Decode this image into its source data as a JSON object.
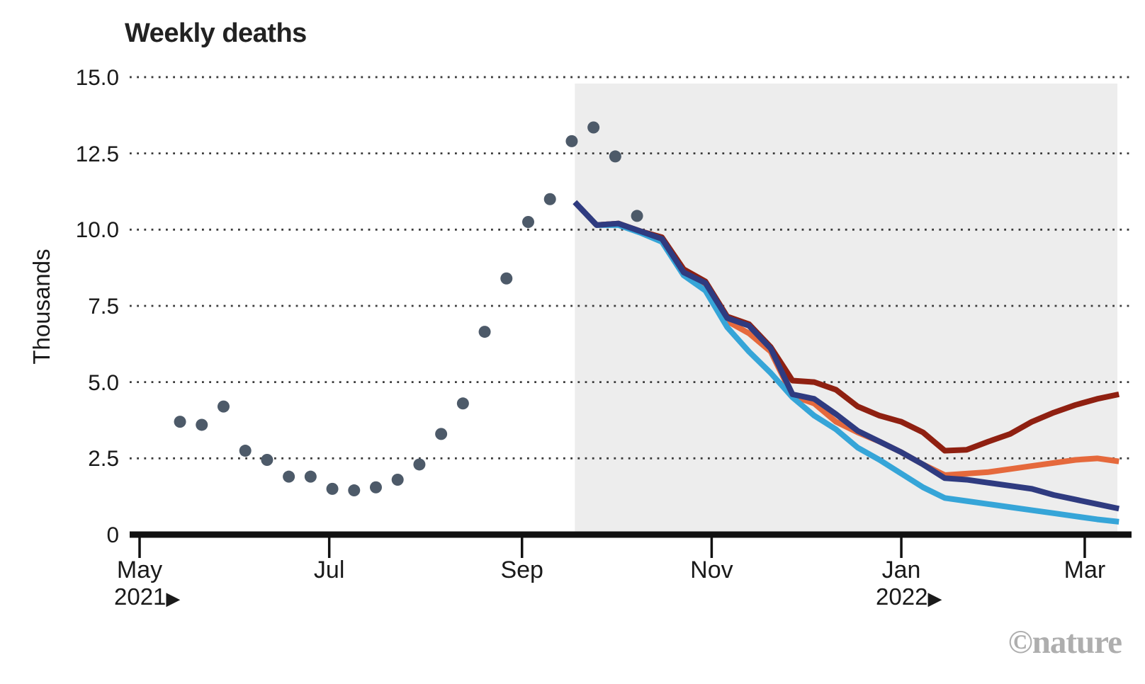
{
  "title": "Weekly deaths",
  "watermark": "©nature",
  "y_axis": {
    "label": "Thousands",
    "ticks": [
      {
        "value": 15,
        "label": "15.0"
      },
      {
        "value": 12.5,
        "label": "12.5"
      },
      {
        "value": 10,
        "label": "10.0"
      },
      {
        "value": 7.5,
        "label": "7.5"
      },
      {
        "value": 5,
        "label": "5.0"
      },
      {
        "value": 2.5,
        "label": "2.5"
      },
      {
        "value": 0,
        "label": "0"
      }
    ]
  },
  "x_axis": {
    "ticks": [
      {
        "label": "May",
        "day": 0
      },
      {
        "label": "Jul",
        "day": 61
      },
      {
        "label": "Sep",
        "day": 123
      },
      {
        "label": "Nov",
        "day": 184
      },
      {
        "label": "Jan",
        "day": 245
      },
      {
        "label": "Mar",
        "day": 304
      }
    ],
    "year_markers": [
      {
        "label": "2021",
        "arrow": "▶",
        "day": 0
      },
      {
        "label": "2022",
        "arrow": "▶",
        "day": 245
      }
    ]
  },
  "chart_data": {
    "type": "line",
    "title": "Weekly deaths",
    "ylabel": "Thousands",
    "x_unit": "days since 2021-05-01",
    "x_domain": [
      -3.2,
      319
    ],
    "ylim": [
      0,
      15
    ],
    "grid": "horizontal dotted",
    "legend": "none",
    "shaded_projection_region": {
      "start_day": 140,
      "end_day": 314.5,
      "color": "#ededed"
    },
    "observed": {
      "name": "observed-weekly-deaths",
      "type": "scatter",
      "color": "#4d5a69",
      "start_day": 13,
      "interval_days": 7,
      "values": [
        3.7,
        3.6,
        4.2,
        2.75,
        2.45,
        1.9,
        1.9,
        1.5,
        1.45,
        1.55,
        1.8,
        2.3,
        3.3,
        4.3,
        6.65,
        8.4,
        10.25,
        11.0,
        12.9,
        13.35,
        12.4,
        10.45
      ]
    },
    "projections": {
      "start_day": 140,
      "interval_days": 7,
      "series": [
        {
          "name": "projection-dark-red",
          "color": "#8f2011",
          "values": [
            10.9,
            10.15,
            10.2,
            9.95,
            9.75,
            8.7,
            8.3,
            7.15,
            6.9,
            6.15,
            5.05,
            5.0,
            4.75,
            4.2,
            3.9,
            3.7,
            3.35,
            2.75,
            2.78,
            3.05,
            3.3,
            3.7,
            4.0,
            4.25,
            4.45,
            4.6
          ]
        },
        {
          "name": "projection-orange",
          "color": "#e5693c",
          "values": [
            10.9,
            10.15,
            10.2,
            9.95,
            9.65,
            8.6,
            8.2,
            7.0,
            6.6,
            6.0,
            4.55,
            4.3,
            3.7,
            3.35,
            3.05,
            2.7,
            2.3,
            1.95,
            2.0,
            2.05,
            2.15,
            2.25,
            2.35,
            2.45,
            2.5,
            2.4
          ]
        },
        {
          "name": "projection-light-blue",
          "color": "#36a5d8",
          "values": [
            10.9,
            10.15,
            10.15,
            9.9,
            9.6,
            8.5,
            8.0,
            6.8,
            6.0,
            5.3,
            4.5,
            3.9,
            3.45,
            2.85,
            2.45,
            2.0,
            1.55,
            1.2,
            1.1,
            1.0,
            0.9,
            0.8,
            0.7,
            0.6,
            0.5,
            0.42
          ]
        },
        {
          "name": "projection-navy",
          "color": "#2f3b80",
          "values": [
            10.9,
            10.15,
            10.2,
            9.95,
            9.7,
            8.6,
            8.25,
            7.1,
            6.85,
            6.1,
            4.6,
            4.45,
            3.95,
            3.4,
            3.05,
            2.7,
            2.3,
            1.85,
            1.8,
            1.7,
            1.6,
            1.5,
            1.3,
            1.15,
            1.0,
            0.85
          ]
        }
      ]
    },
    "style": {
      "grid_color": "#3b3b3b",
      "axis_color": "#111111",
      "label_color": "#1a1a1a",
      "dot_radius": 8.5,
      "line_width": 8
    }
  }
}
